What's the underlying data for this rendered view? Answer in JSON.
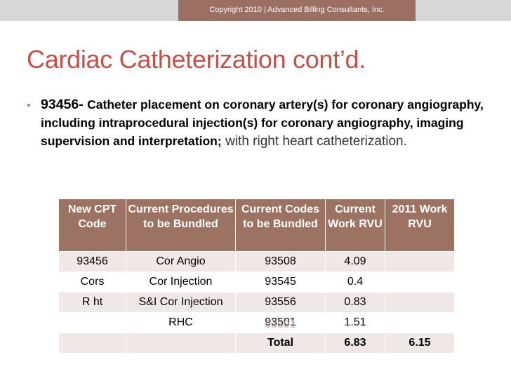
{
  "header": {
    "copyright": "Copyright 2010 | Advanced Billing Consultants, Inc."
  },
  "slide": {
    "title": "Cardiac Catheterization cont’d.",
    "bullet": {
      "code": "93456-",
      "description": "Catheter placement on coronary artery(s) for coronary angiography, including intraprocedural injection(s) for coronary angiography, imaging supervision and interpretation;",
      "tail": "with right heart catheterization."
    }
  },
  "table": {
    "headers": [
      "New CPT Code",
      "Current Procedures to be Bundled",
      "Current Codes to be Bundled",
      "Current Work RVU",
      "2011 Work RVU"
    ],
    "rows": [
      [
        "93456",
        "Cor Angio",
        "93508",
        "4.09",
        ""
      ],
      [
        "Cors",
        "Cor Injection",
        "93545",
        "0.4",
        ""
      ],
      [
        "R ht",
        "S&I Cor Injection",
        "93556",
        "0.83",
        ""
      ],
      [
        "",
        "RHC",
        "93501",
        "1.51",
        ""
      ],
      [
        "",
        "",
        "Total",
        "6.83",
        "6.15"
      ]
    ]
  },
  "colors": {
    "title": "#c0524b",
    "table_header": "#9c7262",
    "band": "#efe8e5",
    "accent_bar": "#9c6f63"
  }
}
